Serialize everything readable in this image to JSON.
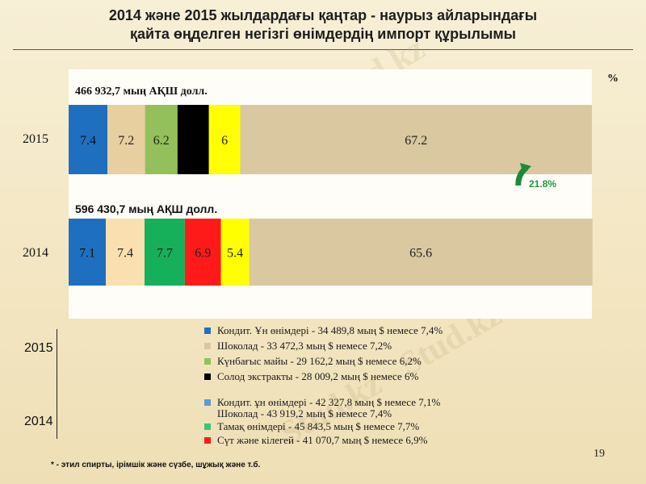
{
  "title_line1": "2014 және 2015 жылдардағы қаңтар - наурыз айларындағы",
  "title_line2": "қайта өңделген негізгі өнімдердің импорт құрылымы",
  "unit": "%",
  "growth_label": "21,8%",
  "page_number": "19",
  "footnote": "* - этил спирты, ірімшік және сүзбе, шұжық және т.б.",
  "watermark": "Stud.kz - Stud.kz",
  "chart_data": {
    "type": "bar",
    "orientation": "horizontal-stacked",
    "categories": [
      "2015",
      "2014"
    ],
    "totals": [
      "466 932,7 мың АҚШ долл.",
      "596 430,7 мың АҚШ долл."
    ],
    "bars": [
      {
        "year": "2015",
        "segments": [
          {
            "value": 7.4,
            "label": "7.4",
            "color": "#1f6fc0"
          },
          {
            "value": 7.2,
            "label": "7.2",
            "color": "#e8cfa0"
          },
          {
            "value": 6.2,
            "label": "6.2",
            "color": "#93c05a"
          },
          {
            "value": 6.0,
            "label": "6",
            "color": "#000000",
            "label_hidden": true
          },
          {
            "value": 6.0,
            "label": "6",
            "color": "#ffff00"
          },
          {
            "value": 67.2,
            "label": "67.2",
            "color": "#d9c8a0"
          }
        ]
      },
      {
        "year": "2014",
        "segments": [
          {
            "value": 7.1,
            "label": "7.1",
            "color": "#1f6fc0"
          },
          {
            "value": 7.4,
            "label": "7.4",
            "color": "#fae0b0"
          },
          {
            "value": 7.7,
            "label": "7.7",
            "color": "#16b05a"
          },
          {
            "value": 6.9,
            "label": "6.9",
            "color": "#ff1a1a"
          },
          {
            "value": 5.4,
            "label": "5.4",
            "color": "#ffff00"
          },
          {
            "value": 65.6,
            "label": "65.6",
            "color": "#d9c8a0"
          }
        ]
      }
    ],
    "legend": {
      "2015": [
        {
          "text": "Кондит. Ұн өнімдері - 34 489,8 мың $ немесе 7,4%",
          "color": "#1f6fc0"
        },
        {
          "text": "Шоколад - 33 472,3 мың $ немесе 7,2%",
          "color": "#d9c8a0"
        },
        {
          "text": "Күнбағыс майы - 29 162,2 мың $ немесе 6,2%",
          "color": "#93c05a"
        },
        {
          "text": "Солод экстракты - 28 009,2 мың $ немесе 6%",
          "color": "#000000"
        }
      ],
      "2014": [
        {
          "text": "Кондит. ұн өнімдері - 42 327,8 мың $ немесе 7,1%",
          "color": "#5b9bd5"
        },
        {
          "text": "Шоколад - 43 919,2 мың $ немесе 7,4%",
          "color": ""
        },
        {
          "text": "Тамақ өнімдері - 45 843,5 мың $ немесе 7,7%",
          "color": "#3cc47a"
        },
        {
          "text": "Сүт және кілегей - 41 070,7 мың $ немесе 6,9%",
          "color": "#ff1a1a"
        }
      ]
    }
  }
}
